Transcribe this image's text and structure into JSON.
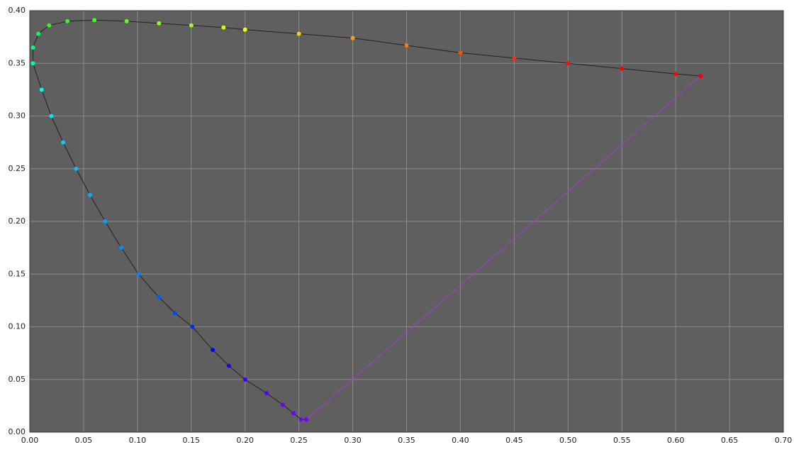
{
  "chart_data": {
    "type": "scatter",
    "x": [
      0.257,
      0.252,
      0.245,
      0.235,
      0.22,
      0.2,
      0.185,
      0.17,
      0.151,
      0.135,
      0.12,
      0.101,
      0.085,
      0.07,
      0.056,
      0.043,
      0.031,
      0.02,
      0.011,
      0.003,
      0.003,
      0.008,
      0.018,
      0.035,
      0.06,
      0.09,
      0.12,
      0.15,
      0.18,
      0.2,
      0.25,
      0.3,
      0.35,
      0.4,
      0.45,
      0.5,
      0.55,
      0.6,
      0.623
    ],
    "values": [
      0.012,
      0.012,
      0.018,
      0.026,
      0.037,
      0.05,
      0.063,
      0.078,
      0.1,
      0.113,
      0.128,
      0.15,
      0.175,
      0.2,
      0.225,
      0.25,
      0.275,
      0.3,
      0.325,
      0.35,
      0.365,
      0.378,
      0.386,
      0.39,
      0.391,
      0.39,
      0.388,
      0.386,
      0.384,
      0.382,
      0.378,
      0.374,
      0.367,
      0.36,
      0.355,
      0.35,
      0.345,
      0.34,
      0.338
    ],
    "colors": [
      "#7a00ff",
      "#7400ff",
      "#6e00ff",
      "#6a00ff",
      "#5500ff",
      "#4000ff",
      "#2000ff",
      "#0000ff",
      "#0030ff",
      "#0045ff",
      "#0060ff",
      "#0080ff",
      "#0090ff",
      "#00a0ff",
      "#00b0ff",
      "#00c0ff",
      "#00d0ff",
      "#00e0ff",
      "#00ffe0",
      "#00ffa0",
      "#00ff80",
      "#00ff50",
      "#20ff20",
      "#30ff20",
      "#40ff20",
      "#60ff20",
      "#80ff20",
      "#a0ff20",
      "#d0ff00",
      "#ffff00",
      "#ffd000",
      "#ffa000",
      "#ff8000",
      "#ff5000",
      "#ff3000",
      "#ff1000",
      "#ff0000",
      "#ff0000",
      "#ff0000"
    ],
    "closing_line_color": "#a040c0",
    "background": "#5f5f5f",
    "grid": true,
    "xlim": [
      0,
      0.7
    ],
    "ylim": [
      0,
      0.4
    ],
    "xticks": [
      {
        "value": 0,
        "label": "0.00"
      },
      {
        "value": 0.05,
        "label": "0.05"
      },
      {
        "value": 0.1,
        "label": "0.10"
      },
      {
        "value": 0.15,
        "label": "0.15"
      },
      {
        "value": 0.2,
        "label": "0.20"
      },
      {
        "value": 0.25,
        "label": "0.25"
      },
      {
        "value": 0.3,
        "label": "0.30"
      },
      {
        "value": 0.35,
        "label": "0.35"
      },
      {
        "value": 0.4,
        "label": "0.40"
      },
      {
        "value": 0.45,
        "label": "0.45"
      },
      {
        "value": 0.5,
        "label": "0.50"
      },
      {
        "value": 0.55,
        "label": "0.55"
      },
      {
        "value": 0.6,
        "label": "0.60"
      },
      {
        "value": 0.65,
        "label": "0.65"
      },
      {
        "value": 0.7,
        "label": "0.70"
      }
    ],
    "yticks": [
      {
        "value": 0,
        "label": "0.00"
      },
      {
        "value": 0.05,
        "label": "0.05"
      },
      {
        "value": 0.1,
        "label": "0.10"
      },
      {
        "value": 0.15,
        "label": "0.15"
      },
      {
        "value": 0.2,
        "label": "0.20"
      },
      {
        "value": 0.25,
        "label": "0.25"
      },
      {
        "value": 0.3,
        "label": "0.30"
      },
      {
        "value": 0.35,
        "label": "0.35"
      },
      {
        "value": 0.4,
        "label": "0.40"
      }
    ]
  }
}
